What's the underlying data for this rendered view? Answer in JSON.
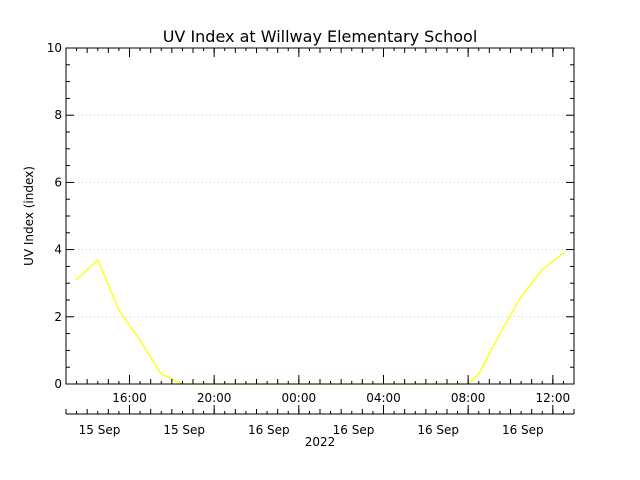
{
  "chart_data": {
    "type": "line",
    "title": "UV Index at Willway Elementary School",
    "ylabel": "UV Index (index)",
    "xlabel": "2022",
    "ylim": [
      0,
      10
    ],
    "yticks": [
      "0",
      "2",
      "4",
      "6",
      "8",
      "10"
    ],
    "xlim": [
      "2022-09-15 13:00",
      "2022-09-16 13:00"
    ],
    "xticks": [
      {
        "time": "2022-09-15 16:00",
        "label": "16:00",
        "date": "15 Sep"
      },
      {
        "time": "2022-09-15 20:00",
        "label": "20:00",
        "date": "15 Sep"
      },
      {
        "time": "2022-09-16 00:00",
        "label": "00:00",
        "date": "16 Sep"
      },
      {
        "time": "2022-09-16 04:00",
        "label": "04:00",
        "date": "16 Sep"
      },
      {
        "time": "2022-09-16 08:00",
        "label": "08:00",
        "date": "16 Sep"
      },
      {
        "time": "2022-09-16 12:00",
        "label": "12:00",
        "date": "16 Sep"
      }
    ],
    "grid": true,
    "colors": {
      "line": "#ffff00",
      "grid": "#c8c8c8",
      "axis": "#000000"
    },
    "series": [
      {
        "x": [
          "2022-09-15 13:30",
          "2022-09-15 14:30",
          "2022-09-15 15:30",
          "2022-09-15 16:30",
          "2022-09-15 17:30",
          "2022-09-15 18:30",
          "2022-09-15 19:30",
          "2022-09-15 20:30",
          "2022-09-15 21:30",
          "2022-09-15 22:30",
          "2022-09-15 23:30",
          "2022-09-16 00:30",
          "2022-09-16 01:30",
          "2022-09-16 02:30",
          "2022-09-16 03:30",
          "2022-09-16 04:30",
          "2022-09-16 05:30",
          "2022-09-16 06:30",
          "2022-09-16 07:30",
          "2022-09-16 08:00",
          "2022-09-16 08:30",
          "2022-09-16 09:30",
          "2022-09-16 10:30",
          "2022-09-16 11:30",
          "2022-09-16 12:30"
        ],
        "values": [
          3.1,
          3.7,
          2.2,
          1.3,
          0.3,
          0.0,
          0.0,
          0.0,
          0.0,
          0.0,
          0.0,
          0.0,
          0.0,
          0.0,
          0.0,
          0.0,
          0.0,
          0.0,
          0.0,
          0.0,
          0.3,
          1.5,
          2.6,
          3.4,
          3.9
        ]
      }
    ]
  }
}
